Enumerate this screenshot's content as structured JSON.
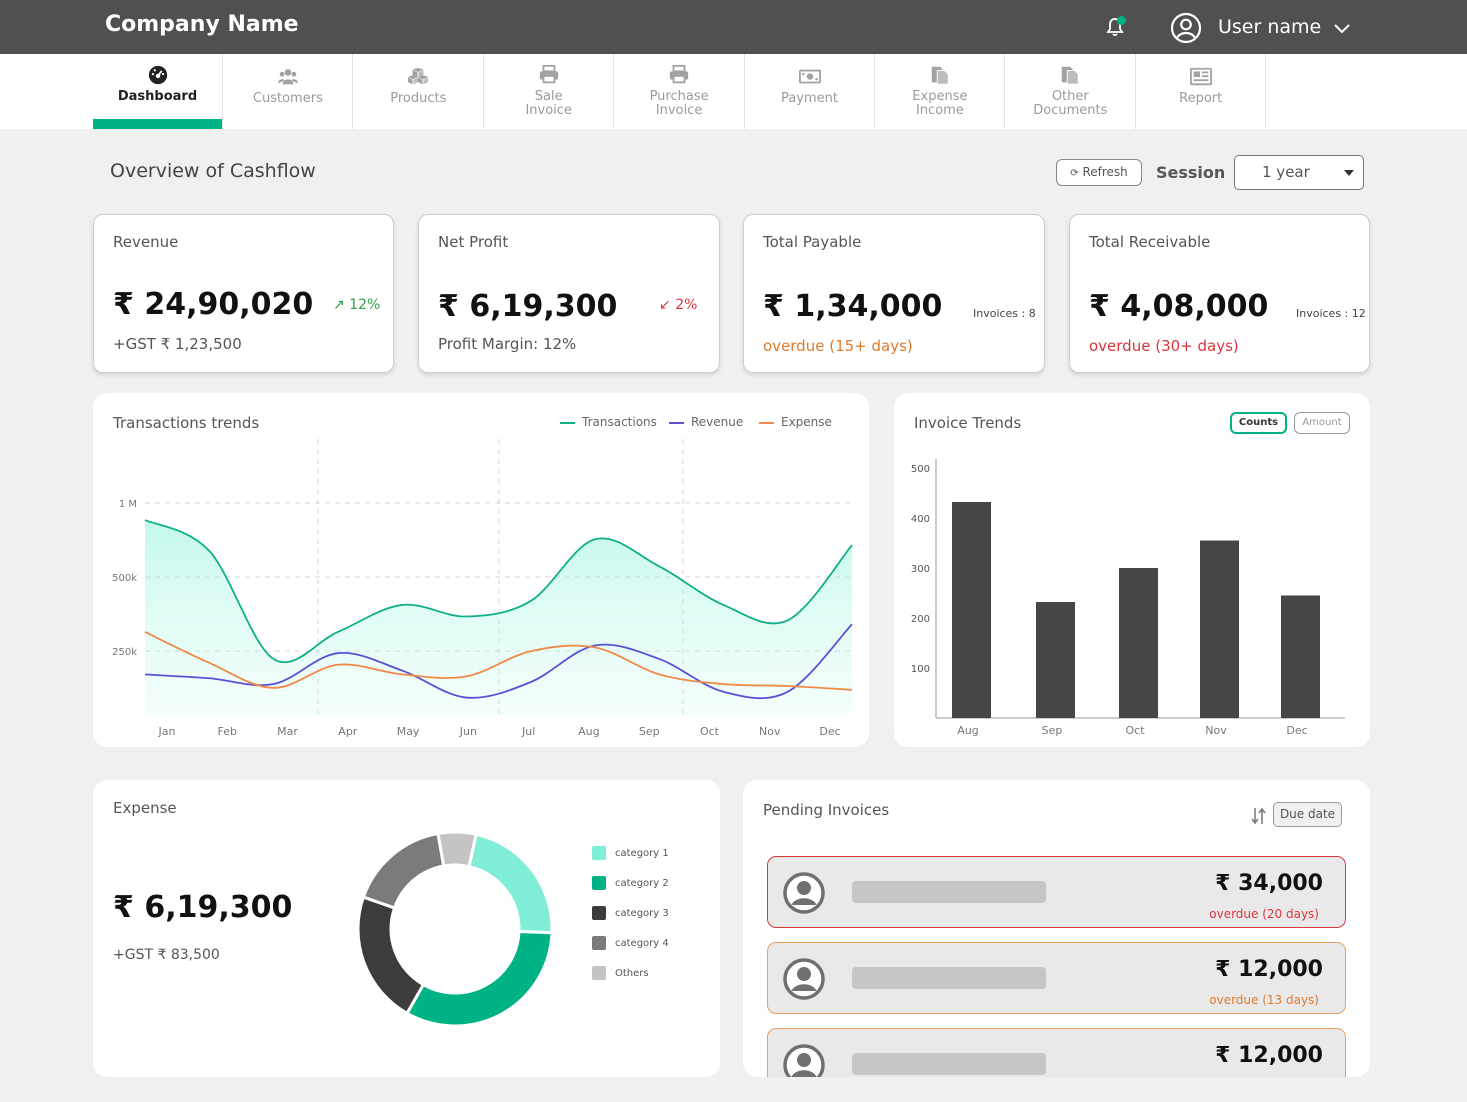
{
  "header": {
    "company": "Company Name",
    "user_name": "User name"
  },
  "nav": {
    "tabs": [
      {
        "id": "dashboard",
        "l1": "Dashboard",
        "l2": "",
        "icon": "dashboard-icon",
        "active": true
      },
      {
        "id": "customers",
        "l1": "Customers",
        "l2": "",
        "icon": "customers-icon",
        "active": false
      },
      {
        "id": "products",
        "l1": "Products",
        "l2": "",
        "icon": "products-icon",
        "active": false
      },
      {
        "id": "sale-invoice",
        "l1": "Sale",
        "l2": "Invoice",
        "icon": "printer-icon",
        "active": false
      },
      {
        "id": "purchase-invoice",
        "l1": "Purchase",
        "l2": "Invoice",
        "icon": "printer-icon",
        "active": false
      },
      {
        "id": "payment",
        "l1": "Payment",
        "l2": "",
        "icon": "money-icon",
        "active": false
      },
      {
        "id": "expense-income",
        "l1": "Expense",
        "l2": "Income",
        "icon": "documents-icon",
        "active": false
      },
      {
        "id": "other-documents",
        "l1": "Other",
        "l2": "Documents",
        "icon": "documents-icon",
        "active": false
      },
      {
        "id": "report",
        "l1": "Report",
        "l2": "",
        "icon": "report-icon",
        "active": false
      }
    ]
  },
  "overview": {
    "title": "Overview of Cashflow",
    "refresh_label": "Refresh",
    "session_label": "Session",
    "session_value": "1 year"
  },
  "cards": {
    "revenue": {
      "title": "Revenue",
      "value": "₹ 24,90,020",
      "trend": "12%",
      "sub": "+GST ₹ 1,23,500"
    },
    "net_profit": {
      "title": "Net Profit",
      "value": "₹ 6,19,300",
      "trend": "2%",
      "sub": "Profit Margin: 12%"
    },
    "total_payable": {
      "title": "Total Payable",
      "value": "₹ 1,34,000",
      "invoices": "Invoices : 8",
      "sub": "overdue (15+ days)"
    },
    "total_receivable": {
      "title": "Total Receivable",
      "value": "₹ 4,08,000",
      "invoices": "Invoices : 12",
      "sub": "overdue (30+ days)"
    }
  },
  "colors": {
    "accent": "#00b386",
    "transactions": "#0fb087",
    "revenue": "#5b4fd6",
    "expense": "#ef8a46",
    "bars": "#464646",
    "up": "#2e9e4a",
    "down": "#d9363e",
    "warn": "#e27a2d"
  },
  "transactions_panel": {
    "title": "Transactions trends"
  },
  "invoice_panel": {
    "title": "Invoice Trends",
    "toggle_counts": "Counts",
    "toggle_amount": "Amount"
  },
  "expense_panel": {
    "title": "Expense",
    "value": "₹ 6,19,300",
    "sub": "+GST ₹ 83,500"
  },
  "pending_panel": {
    "title": "Pending Invoices",
    "sort_label": "Due date",
    "rows": [
      {
        "amount": "₹ 34,000",
        "overdue": "overdue (20 days)",
        "status": "red"
      },
      {
        "amount": "₹ 12,000",
        "overdue": "overdue (13 days)",
        "status": "orange"
      },
      {
        "amount": "₹ 12,000",
        "overdue": "",
        "status": "orange"
      }
    ]
  },
  "chart_data": [
    {
      "type": "line",
      "title": "Transactions trends",
      "x": [
        "Jan",
        "Feb",
        "Mar",
        "Apr",
        "May",
        "Jun",
        "Jul",
        "Aug",
        "Sep",
        "Oct",
        "Nov",
        "Dec"
      ],
      "y_ticks": [
        "250k",
        "500k",
        "1 M"
      ],
      "series": [
        {
          "name": "Transactions",
          "values": [
            1.0,
            0.84,
            0.28,
            0.42,
            0.56,
            0.5,
            0.58,
            0.9,
            0.76,
            0.56,
            0.48,
            0.87
          ]
        },
        {
          "name": "Revenue",
          "values": [
            0.2,
            0.18,
            0.15,
            0.31,
            0.22,
            0.08,
            0.16,
            0.35,
            0.28,
            0.11,
            0.11,
            0.46
          ]
        },
        {
          "name": "Expense",
          "values": [
            0.42,
            0.26,
            0.13,
            0.25,
            0.2,
            0.19,
            0.32,
            0.34,
            0.2,
            0.15,
            0.14,
            0.12
          ]
        }
      ],
      "legend": "top-right"
    },
    {
      "type": "bar",
      "title": "Invoice Trends",
      "categories": [
        "Aug",
        "Sep",
        "Oct",
        "Nov",
        "Dec"
      ],
      "values": [
        432,
        232,
        300,
        355,
        245
      ],
      "ylim": [
        0,
        500
      ],
      "y_ticks": [
        100,
        200,
        300,
        400,
        500
      ]
    },
    {
      "type": "pie",
      "title": "Expense",
      "labels": [
        "category 1",
        "category 2",
        "category 3",
        "category 4",
        "Others"
      ],
      "values": [
        21,
        31,
        21,
        16,
        6
      ],
      "colors": [
        "#80eed6",
        "#00b386",
        "#3c3c3c",
        "#7b7b7b",
        "#c4c4c4"
      ]
    }
  ]
}
